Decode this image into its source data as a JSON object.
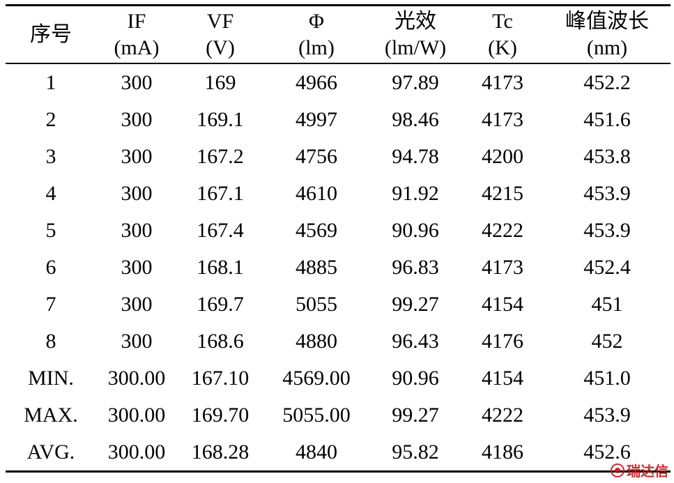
{
  "table": {
    "headers": [
      {
        "line1": "序号",
        "line2": ""
      },
      {
        "line1": "IF",
        "line2": "(mA)"
      },
      {
        "line1": "VF",
        "line2": "(V)"
      },
      {
        "line1": "Φ",
        "line2": "(lm)"
      },
      {
        "line1": "光效",
        "line2": "(lm/W)"
      },
      {
        "line1": "Tc",
        "line2": "(K)"
      },
      {
        "line1": "峰值波长",
        "line2": "(nm)"
      }
    ],
    "rows": [
      [
        "1",
        "300",
        "169",
        "4966",
        "97.89",
        "4173",
        "452.2"
      ],
      [
        "2",
        "300",
        "169.1",
        "4997",
        "98.46",
        "4173",
        "451.6"
      ],
      [
        "3",
        "300",
        "167.2",
        "4756",
        "94.78",
        "4200",
        "453.8"
      ],
      [
        "4",
        "300",
        "167.1",
        "4610",
        "91.92",
        "4215",
        "453.9"
      ],
      [
        "5",
        "300",
        "167.4",
        "4569",
        "90.96",
        "4222",
        "453.9"
      ],
      [
        "6",
        "300",
        "168.1",
        "4885",
        "96.83",
        "4173",
        "452.4"
      ],
      [
        "7",
        "300",
        "169.7",
        "5055",
        "99.27",
        "4154",
        "451"
      ],
      [
        "8",
        "300",
        "168.6",
        "4880",
        "96.43",
        "4176",
        "452"
      ],
      [
        "MIN.",
        "300.00",
        "167.10",
        "4569.00",
        "90.96",
        "4154",
        "451.0"
      ],
      [
        "MAX.",
        "300.00",
        "169.70",
        "5055.00",
        "99.27",
        "4222",
        "453.9"
      ],
      [
        "AVG.",
        "300.00",
        "168.28",
        "4840",
        "95.82",
        "4186",
        "452.6"
      ]
    ]
  },
  "watermark": {
    "text": "瑞达信",
    "color": "#c4161c"
  }
}
